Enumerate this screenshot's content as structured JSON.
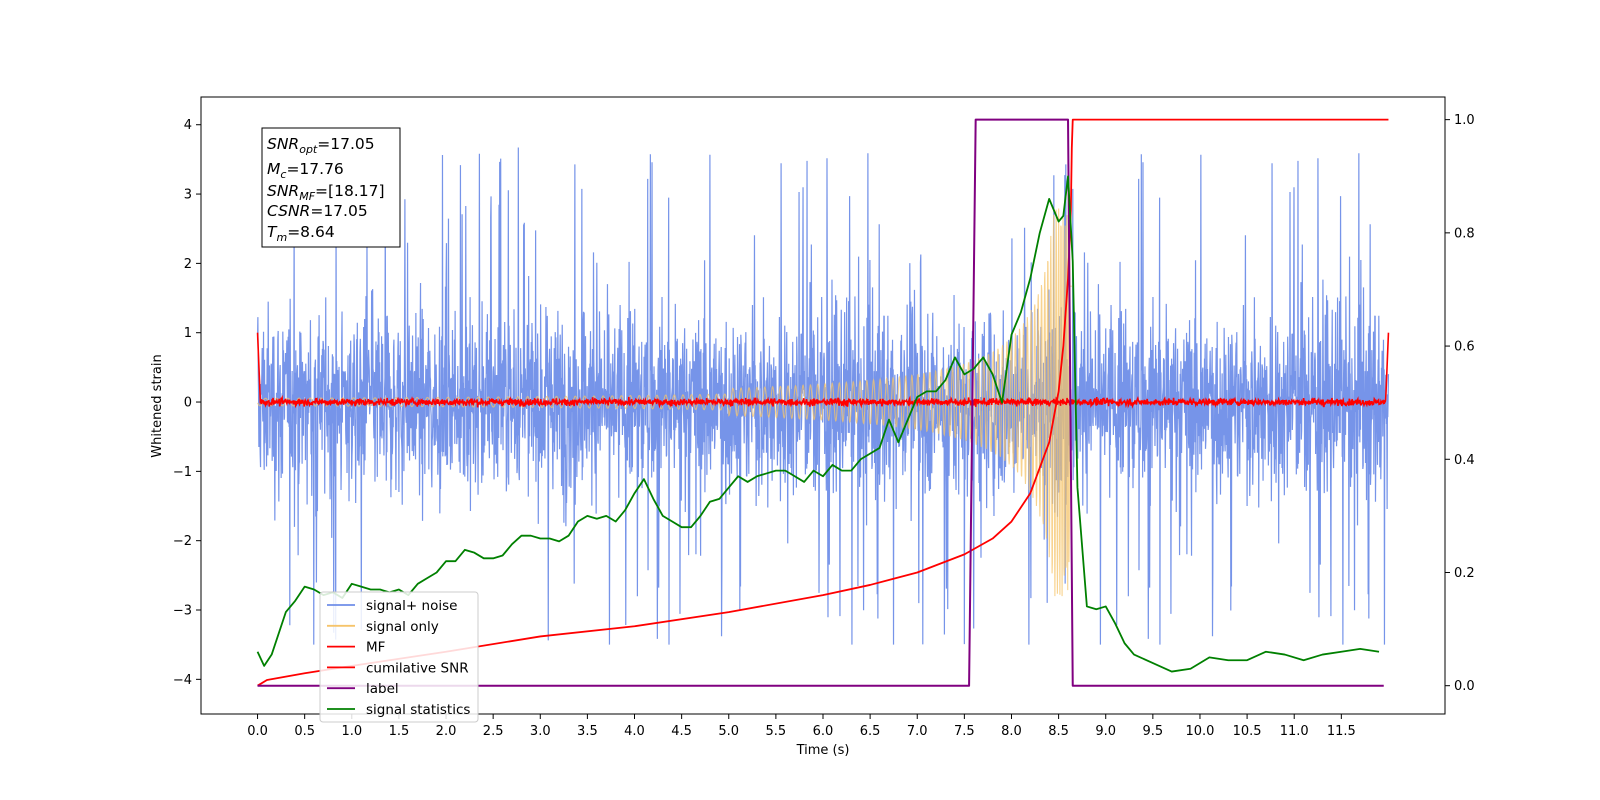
{
  "chart_data": {
    "type": "line",
    "xlabel": "Time (s)",
    "ylabel": "Whitened strain",
    "xlim": [
      -0.6,
      12.6
    ],
    "ylim_left": [
      -4.5,
      4.4
    ],
    "ylim_right": [
      -0.05,
      1.04
    ],
    "x_ticks": [
      "0.0",
      "0.5",
      "1.0",
      "1.5",
      "2.0",
      "2.5",
      "3.0",
      "3.5",
      "4.0",
      "4.5",
      "5.0",
      "5.5",
      "6.0",
      "6.5",
      "7.0",
      "7.5",
      "8.0",
      "8.5",
      "9.0",
      "9.5",
      "10.0",
      "10.5",
      "11.0",
      "11.5"
    ],
    "y_ticks_left": [
      "−4",
      "−3",
      "−2",
      "−1",
      "0",
      "1",
      "2",
      "3",
      "4"
    ],
    "y_ticks_right": [
      "0.0",
      "0.2",
      "0.4",
      "0.6",
      "0.8",
      "1.0"
    ],
    "grid": false,
    "legend_location": "lower-left",
    "legend": [
      {
        "label": "signal+ noise",
        "color": "#6f8ee8"
      },
      {
        "label": "signal only",
        "color": "#f6c46a"
      },
      {
        "label": "MF",
        "color": "#ff0000"
      },
      {
        "label": "cumilative SNR",
        "color": "#ff0000"
      },
      {
        "label": "label",
        "color": "#800080"
      },
      {
        "label": "signal statistics",
        "color": "#008000"
      }
    ],
    "info_box": {
      "snr_opt": {
        "base": "SNR",
        "sub": "opt",
        "value": "=17.05"
      },
      "mc": {
        "base": "M",
        "sub": "c",
        "value": "=17.76"
      },
      "snr_mf": {
        "base": "SNR",
        "sub": "MF",
        "value": "=[18.17]"
      },
      "csnr": {
        "base": "CSNR",
        "value": "=17.05"
      },
      "tm": {
        "base": "T",
        "sub": "m",
        "value": "=8.64"
      }
    },
    "series": [
      {
        "name": "signal+ noise",
        "axis": "left",
        "description_type": "noise-band",
        "x_range": [
          0.0,
          12.0
        ],
        "band_core": [
          -2.0,
          2.0
        ],
        "spike_max": 3.85,
        "spike_min": -3.5
      },
      {
        "name": "signal only",
        "axis": "left",
        "description_type": "chirp",
        "x_range": [
          0.0,
          8.64
        ],
        "amplitude_at_merger": 2.8,
        "merger_time": 8.64
      },
      {
        "name": "MF",
        "axis": "left",
        "description_type": "noise-line",
        "x_range": [
          0.0,
          12.0
        ],
        "level": 0.0,
        "noise_amp": 0.07,
        "edge_peak": 1.0
      },
      {
        "name": "cumilative SNR",
        "axis": "right",
        "x": [
          0.0,
          0.1,
          0.5,
          1.0,
          2.0,
          3.0,
          4.0,
          5.0,
          6.0,
          6.5,
          7.0,
          7.5,
          7.8,
          8.0,
          8.2,
          8.4,
          8.5,
          8.55,
          8.6,
          8.63,
          8.64,
          8.65,
          12.0
        ],
        "y": [
          0.0,
          0.01,
          0.022,
          0.035,
          0.06,
          0.087,
          0.105,
          0.13,
          0.16,
          0.178,
          0.2,
          0.232,
          0.26,
          0.29,
          0.34,
          0.43,
          0.52,
          0.6,
          0.72,
          0.84,
          0.95,
          1.0,
          1.0
        ]
      },
      {
        "name": "label",
        "axis": "right",
        "x": [
          0.0,
          7.55,
          7.62,
          8.6,
          8.65,
          11.95
        ],
        "y": [
          0.0,
          0.0,
          1.0,
          1.0,
          0.0,
          0.0
        ]
      },
      {
        "name": "signal statistics",
        "axis": "right",
        "x": [
          0.0,
          0.07,
          0.15,
          0.3,
          0.4,
          0.5,
          0.6,
          0.7,
          0.8,
          0.9,
          1.0,
          1.1,
          1.2,
          1.3,
          1.4,
          1.5,
          1.6,
          1.7,
          1.8,
          1.9,
          2.0,
          2.1,
          2.2,
          2.3,
          2.4,
          2.5,
          2.6,
          2.7,
          2.8,
          2.9,
          3.0,
          3.1,
          3.2,
          3.3,
          3.4,
          3.5,
          3.6,
          3.7,
          3.8,
          3.9,
          4.0,
          4.1,
          4.2,
          4.3,
          4.4,
          4.5,
          4.6,
          4.7,
          4.8,
          4.9,
          5.0,
          5.1,
          5.2,
          5.3,
          5.4,
          5.5,
          5.6,
          5.7,
          5.8,
          5.9,
          6.0,
          6.1,
          6.2,
          6.3,
          6.4,
          6.5,
          6.6,
          6.7,
          6.8,
          6.9,
          7.0,
          7.1,
          7.2,
          7.3,
          7.4,
          7.5,
          7.6,
          7.7,
          7.8,
          7.9,
          8.0,
          8.1,
          8.2,
          8.3,
          8.4,
          8.5,
          8.55,
          8.6,
          8.65,
          8.7,
          8.8,
          8.9,
          9.0,
          9.1,
          9.2,
          9.3,
          9.5,
          9.7,
          9.9,
          10.1,
          10.3,
          10.5,
          10.7,
          10.9,
          11.1,
          11.3,
          11.5,
          11.7,
          11.9
        ],
        "y": [
          0.06,
          0.035,
          0.055,
          0.13,
          0.15,
          0.175,
          0.17,
          0.16,
          0.165,
          0.155,
          0.18,
          0.175,
          0.17,
          0.17,
          0.165,
          0.17,
          0.16,
          0.18,
          0.19,
          0.2,
          0.22,
          0.22,
          0.24,
          0.235,
          0.225,
          0.225,
          0.23,
          0.25,
          0.265,
          0.265,
          0.26,
          0.26,
          0.255,
          0.265,
          0.29,
          0.3,
          0.295,
          0.3,
          0.29,
          0.31,
          0.34,
          0.365,
          0.33,
          0.3,
          0.29,
          0.28,
          0.28,
          0.3,
          0.325,
          0.33,
          0.35,
          0.37,
          0.36,
          0.37,
          0.375,
          0.38,
          0.38,
          0.37,
          0.36,
          0.38,
          0.37,
          0.39,
          0.38,
          0.38,
          0.4,
          0.41,
          0.42,
          0.47,
          0.43,
          0.47,
          0.51,
          0.52,
          0.52,
          0.54,
          0.58,
          0.55,
          0.56,
          0.58,
          0.55,
          0.5,
          0.62,
          0.66,
          0.72,
          0.8,
          0.86,
          0.82,
          0.83,
          0.9,
          0.75,
          0.35,
          0.14,
          0.135,
          0.14,
          0.11,
          0.075,
          0.055,
          0.04,
          0.025,
          0.03,
          0.05,
          0.045,
          0.045,
          0.06,
          0.055,
          0.045,
          0.055,
          0.06,
          0.065,
          0.06
        ]
      }
    ]
  }
}
